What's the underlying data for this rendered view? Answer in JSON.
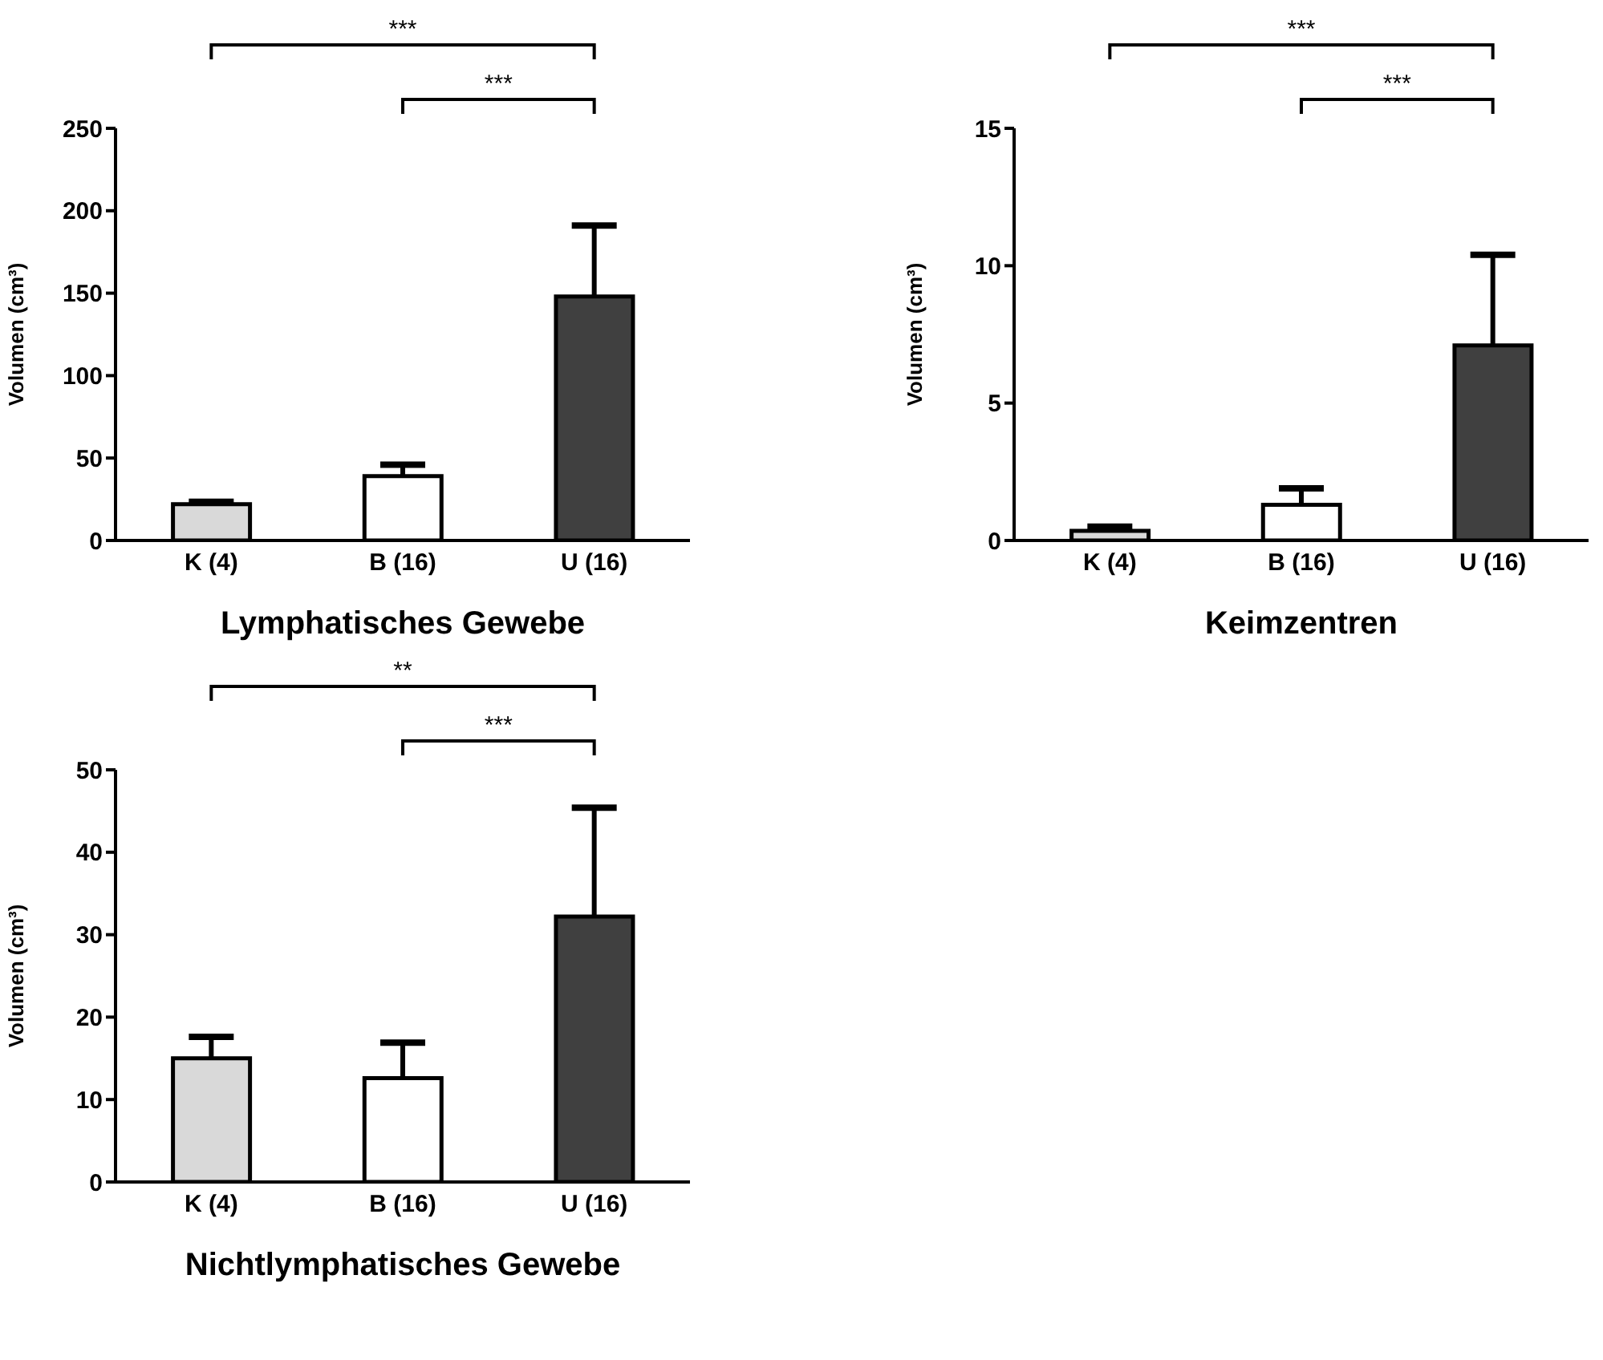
{
  "chart_data": [
    {
      "type": "bar",
      "xlabel": "Lymphatisches Gewebe",
      "ylabel": "Volumen (cm³)",
      "categories": [
        "K (4)",
        "B (16)",
        "U (16)"
      ],
      "values": [
        22,
        39,
        148
      ],
      "errors": [
        [
          22,
          23.5
        ],
        [
          39,
          46
        ],
        [
          148,
          191
        ]
      ],
      "colors": [
        "#d9d9d9",
        "#ffffff",
        "#404040"
      ],
      "ylim": [
        0,
        250
      ],
      "yticks": [
        0,
        50,
        100,
        150,
        200,
        250
      ],
      "annotations": [
        "***",
        "***"
      ]
    },
    {
      "type": "bar",
      "xlabel": "Keimzentren",
      "ylabel": "Volumen (cm³)",
      "categories": [
        "K (4)",
        "B (16)",
        "U (16)"
      ],
      "values": [
        0.35,
        1.3,
        7.1
      ],
      "errors": [
        [
          0.35,
          0.5
        ],
        [
          1.3,
          1.9
        ],
        [
          7.1,
          10.4
        ]
      ],
      "colors": [
        "#d9d9d9",
        "#ffffff",
        "#404040"
      ],
      "ylim": [
        0,
        15
      ],
      "yticks": [
        0,
        5,
        10,
        15
      ],
      "annotations": [
        "***",
        "***"
      ]
    },
    {
      "type": "bar",
      "xlabel": "Nichtlymphatisches Gewebe",
      "ylabel": "Volumen (cm³)",
      "categories": [
        "K (4)",
        "B (16)",
        "U (16)"
      ],
      "values": [
        15,
        12.6,
        32.2
      ],
      "errors": [
        [
          15,
          17.6
        ],
        [
          12.6,
          16.9
        ],
        [
          32.2,
          45.4
        ]
      ],
      "colors": [
        "#d9d9d9",
        "#ffffff",
        "#404040"
      ],
      "ylim": [
        0,
        50
      ],
      "yticks": [
        0,
        10,
        20,
        30,
        40,
        50
      ],
      "annotations": [
        "**",
        "***"
      ]
    }
  ]
}
